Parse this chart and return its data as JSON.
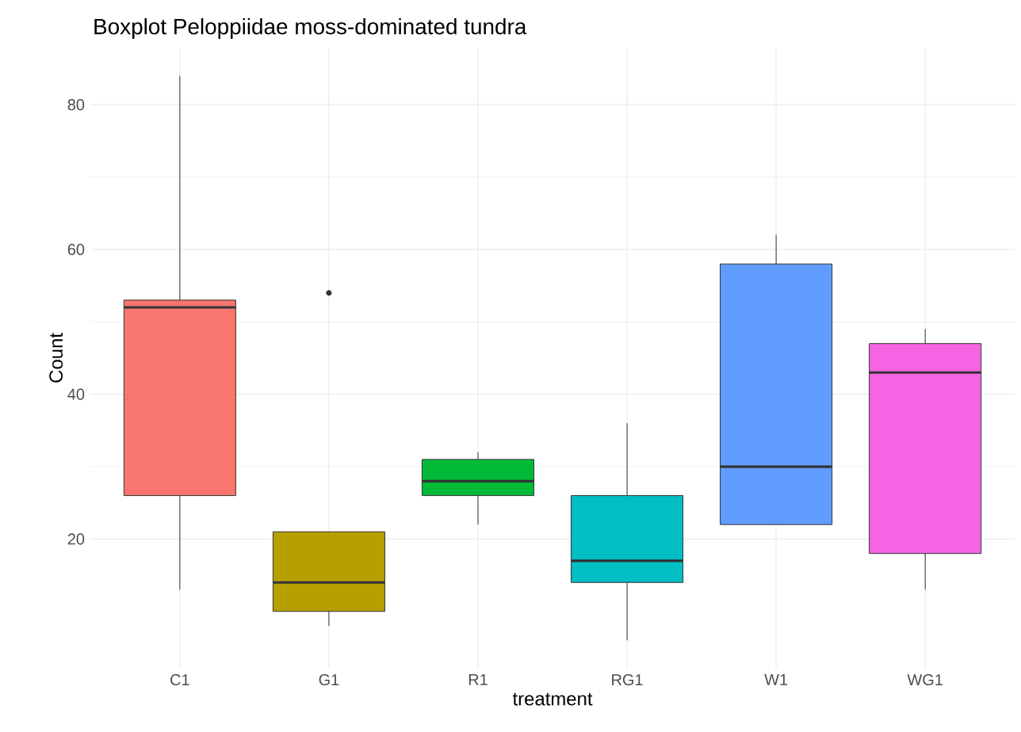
{
  "chart_data": {
    "type": "box",
    "title": "Boxplot Peloppiidae moss-dominated tundra",
    "xlabel": "treatment",
    "ylabel": "Count",
    "categories": [
      "C1",
      "G1",
      "R1",
      "RG1",
      "W1",
      "WG1"
    ],
    "colors": [
      "#f8766d",
      "#b79f00",
      "#00ba38",
      "#00bfc4",
      "#619cff",
      "#f564e3"
    ],
    "boxes": [
      {
        "low": 13,
        "q1": 26,
        "median": 52,
        "q3": 53,
        "high": 84
      },
      {
        "low": 8,
        "q1": 10,
        "median": 14,
        "q3": 21,
        "high": 21,
        "outliers": [
          54
        ]
      },
      {
        "low": 22,
        "q1": 26,
        "median": 28,
        "q3": 31,
        "high": 32
      },
      {
        "low": 6,
        "q1": 14,
        "median": 17,
        "q3": 26,
        "high": 36
      },
      {
        "low": 22,
        "q1": 22,
        "median": 30,
        "q3": 58,
        "high": 62
      },
      {
        "low": 13,
        "q1": 18,
        "median": 43,
        "q3": 47,
        "high": 49
      }
    ],
    "ylim": [
      2.1,
      87.9
    ],
    "yticks": [
      20,
      40,
      60,
      80
    ],
    "grid": true
  }
}
